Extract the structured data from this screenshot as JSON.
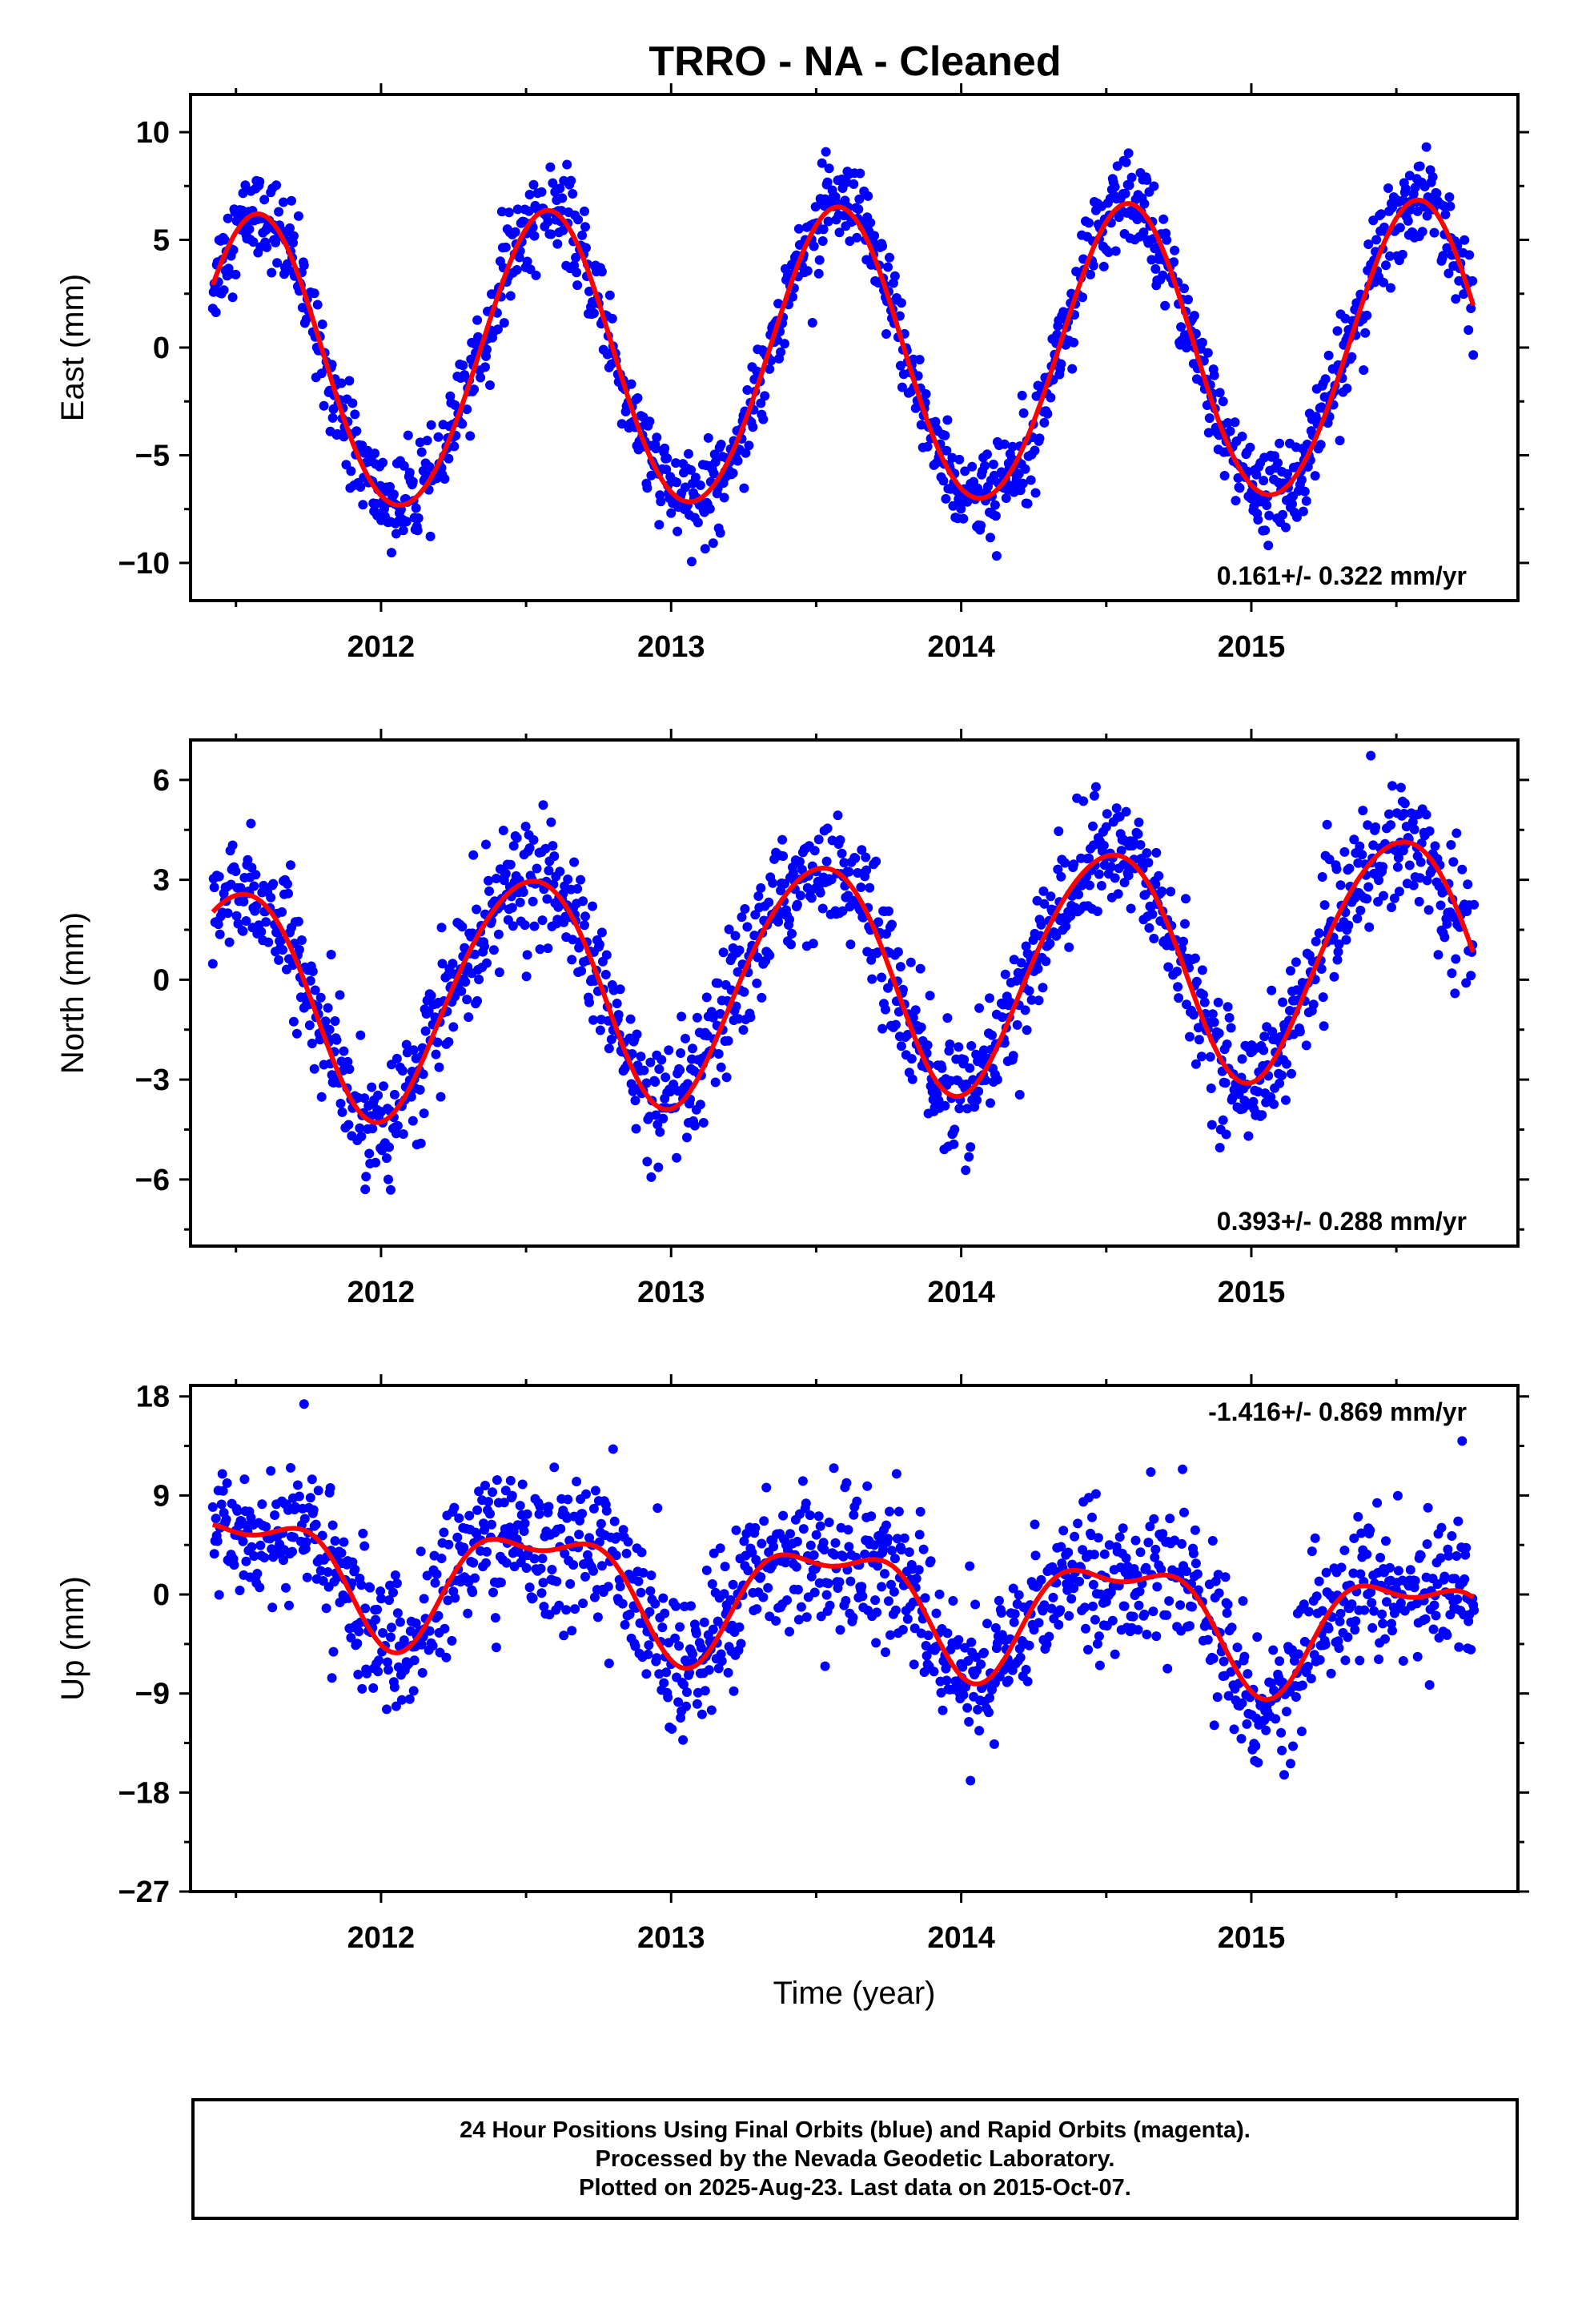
{
  "title": "TRRO  - NA - Cleaned",
  "footer": {
    "line1": "24 Hour Positions Using Final Orbits (blue) and Rapid Orbits (magenta).",
    "line2": "Processed by the Nevada Geodetic Laboratory.",
    "line3": "Plotted on 2025-Aug-23. Last data on 2015-Oct-07."
  },
  "chart_data": [
    {
      "type": "scatter",
      "panel": "east",
      "ylabel": "East (mm)",
      "xlabel": "",
      "xlim": [
        2011.3434,
        2015.9191
      ],
      "ylim": [
        -11.75,
        11.75
      ],
      "x_ticks": [
        2012,
        2013,
        2014,
        2015
      ],
      "y_ticks": [
        -10,
        -5,
        0,
        5,
        10
      ],
      "y_tick_labels": [
        "−10",
        "−5",
        "0",
        "5",
        "10"
      ],
      "velocity_label": "0.161+/- 0.322 mm/yr",
      "velocity_position": "bottom-right",
      "grid": false,
      "point_color": "#0000ff",
      "fit_color": "#ff0000",
      "model": {
        "mean": -0.55,
        "rate": 0.161,
        "ref_year": 2013.6,
        "annual_amp": 6.8,
        "annual_peak": 0.57,
        "semi_amp": 0.3,
        "semi_peak": 0.1
      },
      "data_range": [
        2011.42,
        2015.77
      ],
      "noise_sd": 1.05
    },
    {
      "type": "scatter",
      "panel": "north",
      "ylabel": "North (mm)",
      "xlabel": "",
      "xlim": [
        2011.3434,
        2015.9191
      ],
      "ylim": [
        -8,
        7.2
      ],
      "x_ticks": [
        2012,
        2013,
        2014,
        2015
      ],
      "y_ticks": [
        -6,
        -3,
        0,
        3,
        6
      ],
      "y_tick_labels": [
        "−6",
        "−3",
        "0",
        "3",
        "6"
      ],
      "velocity_label": "0.393+/- 0.288 mm/yr",
      "velocity_position": "bottom-right",
      "grid": false,
      "point_color": "#0000ff",
      "fit_color": "#ff0000",
      "model": {
        "mean": 0.1,
        "rate": 0.393,
        "ref_year": 2013.6,
        "annual_amp": 3.5,
        "annual_peak": 0.5,
        "semi_amp": 0.3,
        "semi_peak": 0.2
      },
      "data_range": [
        2011.42,
        2015.77
      ],
      "noise_sd": 0.9
    },
    {
      "type": "scatter",
      "panel": "up",
      "ylabel": "Up (mm)",
      "xlabel": "Time (year)",
      "xlim": [
        2011.3434,
        2015.9191
      ],
      "ylim": [
        -27,
        19
      ],
      "x_ticks": [
        2012,
        2013,
        2014,
        2015
      ],
      "y_ticks": [
        -27,
        -18,
        -9,
        0,
        9,
        18
      ],
      "y_tick_labels": [
        "−27",
        "−18",
        "−9",
        "0",
        "9",
        "18"
      ],
      "velocity_label": "-1.416+/- 0.869 mm/yr",
      "velocity_position": "top-right",
      "grid": false,
      "point_color": "#0000ff",
      "fit_color": "#ff0000",
      "model": {
        "mean": -0.3,
        "rate": -1.416,
        "ref_year": 2013.6,
        "annual_amp": 5.0,
        "annual_peak": 0.55,
        "semi_amp": 2.2,
        "semi_peak": 0.3
      },
      "data_range": [
        2011.42,
        2015.77
      ],
      "noise_sd": 3.2
    }
  ]
}
